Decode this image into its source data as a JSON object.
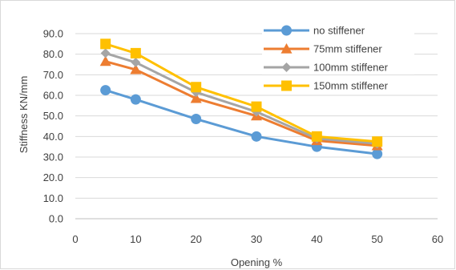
{
  "chart_data": {
    "type": "line",
    "title": "",
    "xlabel": "Opening %",
    "ylabel": "Stiffness KN/mm",
    "xlim": [
      0,
      60
    ],
    "ylim": [
      0,
      90
    ],
    "xticks": [
      0,
      10,
      20,
      30,
      40,
      50,
      60
    ],
    "yticks": [
      0,
      10,
      20,
      30,
      40,
      50,
      60,
      70,
      80,
      90
    ],
    "xtick_labels": [
      "0",
      "10",
      "20",
      "30",
      "40",
      "50",
      "60"
    ],
    "ytick_labels": [
      "0.0",
      "10.0",
      "20.0",
      "30.0",
      "40.0",
      "50.0",
      "60.0",
      "70.0",
      "80.0",
      "90.0"
    ],
    "grid": "horizontal",
    "legend_position": "top-right",
    "x": [
      5,
      10,
      20,
      30,
      40,
      50
    ],
    "series": [
      {
        "name": "no stiffener",
        "color": "#5b9bd5",
        "marker": "circle",
        "values": [
          62.5,
          58.0,
          48.5,
          40.0,
          35.0,
          31.5
        ]
      },
      {
        "name": "75mm stiffener",
        "color": "#ed7d31",
        "marker": "triangle",
        "values": [
          76.5,
          72.5,
          58.5,
          50.0,
          38.0,
          35.5
        ]
      },
      {
        "name": "100mm stiffener",
        "color": "#a5a5a5",
        "marker": "diamond",
        "values": [
          80.5,
          76.0,
          61.5,
          52.0,
          39.0,
          36.5
        ]
      },
      {
        "name": "150mm stiffener",
        "color": "#ffc000",
        "marker": "square",
        "values": [
          85.0,
          80.5,
          64.0,
          54.5,
          40.0,
          37.5
        ]
      }
    ]
  }
}
